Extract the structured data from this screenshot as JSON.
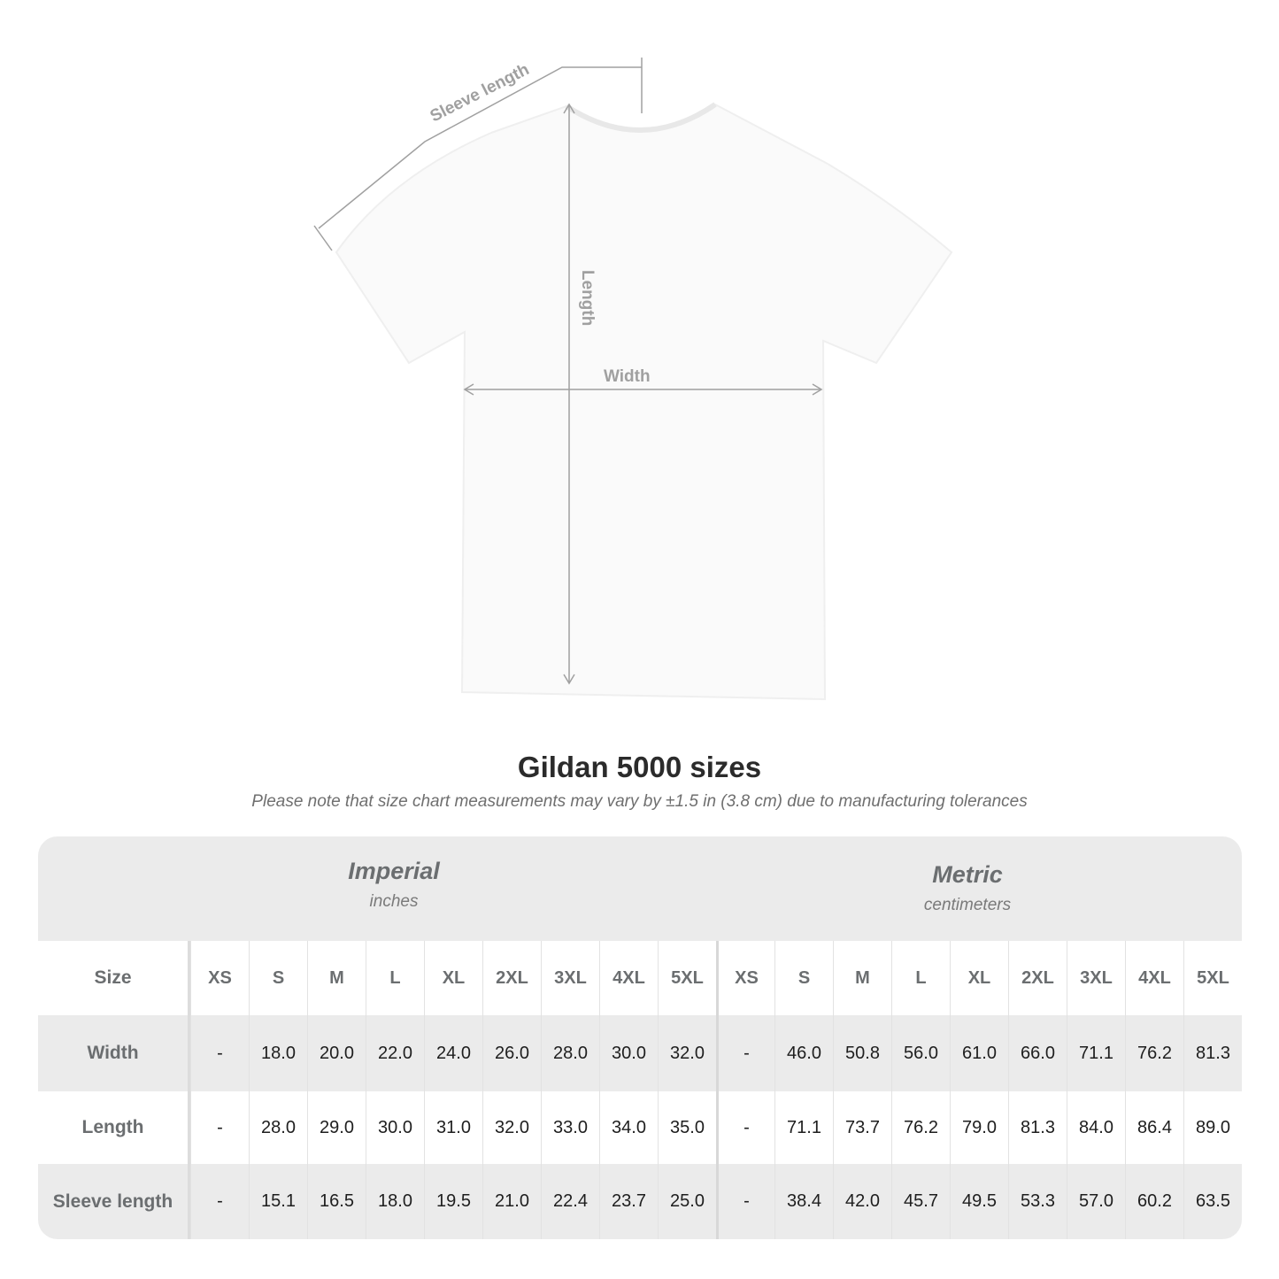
{
  "diagram": {
    "labels": {
      "sleeve": "Sleeve length",
      "length": "Length",
      "width": "Width"
    }
  },
  "title": "Gildan 5000 sizes",
  "subtitle": "Please note that size chart measurements may vary by ±1.5 in (3.8 cm) due to manufacturing tolerances",
  "table": {
    "imperial": {
      "name": "Imperial",
      "unit": "inches"
    },
    "metric": {
      "name": "Metric",
      "unit": "centimeters"
    },
    "size_label": "Size",
    "sizes": [
      "XS",
      "S",
      "M",
      "L",
      "XL",
      "2XL",
      "3XL",
      "4XL",
      "5XL"
    ],
    "rows": [
      {
        "label": "Width",
        "imperial": [
          "-",
          "18.0",
          "20.0",
          "22.0",
          "24.0",
          "26.0",
          "28.0",
          "30.0",
          "32.0"
        ],
        "metric": [
          "-",
          "46.0",
          "50.8",
          "56.0",
          "61.0",
          "66.0",
          "71.1",
          "76.2",
          "81.3"
        ]
      },
      {
        "label": "Length",
        "imperial": [
          "-",
          "28.0",
          "29.0",
          "30.0",
          "31.0",
          "32.0",
          "33.0",
          "34.0",
          "35.0"
        ],
        "metric": [
          "-",
          "71.1",
          "73.7",
          "76.2",
          "79.0",
          "81.3",
          "84.0",
          "86.4",
          "89.0"
        ]
      },
      {
        "label": "Sleeve length",
        "imperial": [
          "-",
          "15.1",
          "16.5",
          "18.0",
          "19.5",
          "21.0",
          "22.4",
          "23.7",
          "25.0"
        ],
        "metric": [
          "-",
          "38.4",
          "42.0",
          "45.7",
          "49.5",
          "53.3",
          "57.0",
          "60.2",
          "63.5"
        ]
      }
    ]
  },
  "colors": {
    "table_bg": "#ebebeb",
    "label_gray": "#6b6e70",
    "measure_line": "#a0a0a0"
  }
}
